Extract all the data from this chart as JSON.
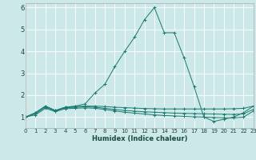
{
  "xlabel": "Humidex (Indice chaleur)",
  "bg_color": "#cde8e8",
  "line_color": "#1a7a6e",
  "grid_color": "#ffffff",
  "xmin": 0,
  "xmax": 23,
  "ymin": 0.5,
  "ymax": 6.2,
  "yticks": [
    1,
    2,
    3,
    4,
    5,
    6
  ],
  "xticks": [
    0,
    1,
    2,
    3,
    4,
    5,
    6,
    7,
    8,
    9,
    10,
    11,
    12,
    13,
    14,
    15,
    16,
    17,
    18,
    19,
    20,
    21,
    22,
    23
  ],
  "series": [
    {
      "x": [
        0,
        1,
        2,
        3,
        4,
        5,
        6,
        7,
        8,
        9,
        10,
        11,
        12,
        13,
        14,
        15,
        16,
        17,
        18,
        19,
        20,
        21,
        22,
        23
      ],
      "y": [
        1.0,
        1.2,
        1.5,
        1.3,
        1.45,
        1.5,
        1.6,
        2.1,
        2.5,
        3.3,
        4.0,
        4.65,
        5.45,
        6.0,
        4.85,
        4.85,
        3.7,
        2.4,
        1.0,
        0.8,
        0.9,
        1.0,
        1.2,
        1.5
      ]
    },
    {
      "x": [
        0,
        1,
        2,
        3,
        4,
        5,
        6,
        7,
        8,
        9,
        10,
        11,
        12,
        13,
        14,
        15,
        16,
        17,
        18,
        19,
        20,
        21,
        22,
        23
      ],
      "y": [
        1.0,
        1.2,
        1.5,
        1.3,
        1.45,
        1.48,
        1.5,
        1.5,
        1.48,
        1.45,
        1.43,
        1.41,
        1.39,
        1.38,
        1.37,
        1.37,
        1.37,
        1.37,
        1.37,
        1.37,
        1.37,
        1.38,
        1.4,
        1.5
      ]
    },
    {
      "x": [
        0,
        1,
        2,
        3,
        4,
        5,
        6,
        7,
        8,
        9,
        10,
        11,
        12,
        13,
        14,
        15,
        16,
        17,
        18,
        19,
        20,
        21,
        22,
        23
      ],
      "y": [
        1.0,
        1.15,
        1.45,
        1.28,
        1.42,
        1.45,
        1.47,
        1.45,
        1.4,
        1.35,
        1.3,
        1.27,
        1.24,
        1.22,
        1.2,
        1.18,
        1.17,
        1.16,
        1.15,
        1.14,
        1.13,
        1.12,
        1.15,
        1.35
      ]
    },
    {
      "x": [
        0,
        1,
        2,
        3,
        4,
        5,
        6,
        7,
        8,
        9,
        10,
        11,
        12,
        13,
        14,
        15,
        16,
        17,
        18,
        19,
        20,
        21,
        22,
        23
      ],
      "y": [
        1.0,
        1.1,
        1.4,
        1.25,
        1.38,
        1.4,
        1.42,
        1.4,
        1.35,
        1.28,
        1.22,
        1.18,
        1.14,
        1.1,
        1.07,
        1.05,
        1.03,
        1.01,
        1.0,
        0.98,
        0.97,
        0.96,
        1.0,
        1.28
      ]
    }
  ]
}
